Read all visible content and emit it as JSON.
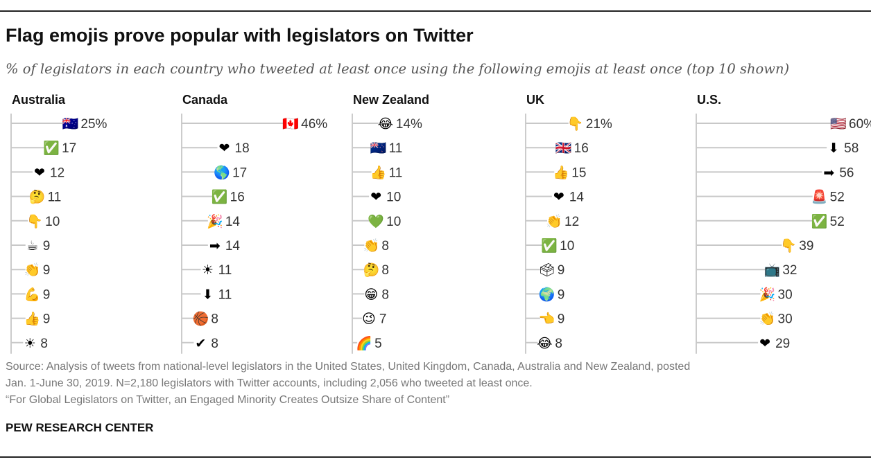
{
  "header": {
    "title": "Flag emojis prove popular with legislators on Twitter",
    "subtitle": "% of legislators in each country who tweeted at least once using the following emojis at least once (top 10 shown)"
  },
  "colors": {
    "line": "#c8c8c8",
    "axis": "#9a9a9a",
    "text": "#333333"
  },
  "chart_data": [
    {
      "type": "bar",
      "title": "Australia",
      "unit": "%",
      "xlim": [
        0,
        60
      ],
      "categories": [
        "australia-flag-emoji",
        "check-mark-button-emoji",
        "red-heart-emoji",
        "thinking-face-emoji",
        "backhand-index-pointing-down-emoji",
        "hot-beverage-emoji",
        "clapping-hands-emoji",
        "flexed-biceps-emoji",
        "thumbs-up-emoji",
        "sun-emoji"
      ],
      "glyphs": [
        "🇦🇺",
        "✅",
        "❤",
        "🤔",
        "👇",
        "☕",
        "👏",
        "💪",
        "👍",
        "☀"
      ],
      "values": [
        25,
        17,
        12,
        11,
        10,
        9,
        9,
        9,
        9,
        8
      ],
      "labels": [
        "25%",
        "17",
        "12",
        "11",
        "10",
        "9",
        "9",
        "9",
        "9",
        "8"
      ]
    },
    {
      "type": "bar",
      "title": "Canada",
      "unit": "%",
      "xlim": [
        0,
        60
      ],
      "categories": [
        "canada-flag-emoji",
        "red-heart-emoji",
        "globe-americas-emoji",
        "check-mark-button-emoji",
        "party-popper-emoji",
        "right-arrow-emoji",
        "sun-emoji",
        "down-arrow-emoji",
        "basketball-emoji",
        "check-mark-emoji"
      ],
      "glyphs": [
        "🇨🇦",
        "❤",
        "🌎",
        "✅",
        "🎉",
        "➡",
        "☀",
        "⬇",
        "🏀",
        "✔"
      ],
      "values": [
        46,
        18,
        17,
        16,
        14,
        14,
        11,
        11,
        8,
        8
      ],
      "labels": [
        "46%",
        "18",
        "17",
        "16",
        "14",
        "14",
        "11",
        "11",
        "8",
        "8"
      ]
    },
    {
      "type": "bar",
      "title": "New Zealand",
      "unit": "%",
      "xlim": [
        0,
        60
      ],
      "categories": [
        "face-with-tears-of-joy-emoji",
        "new-zealand-flag-emoji",
        "thumbs-up-emoji",
        "red-heart-emoji",
        "green-heart-emoji",
        "clapping-hands-emoji",
        "thinking-face-emoji",
        "grinning-face-emoji",
        "winking-face-emoji",
        "rainbow-emoji"
      ],
      "glyphs": [
        "😂",
        "🇳🇿",
        "👍",
        "❤",
        "💚",
        "👏",
        "🤔",
        "😁",
        "😉",
        "🌈"
      ],
      "values": [
        14,
        11,
        11,
        10,
        10,
        8,
        8,
        8,
        7,
        5
      ],
      "labels": [
        "14%",
        "11",
        "11",
        "10",
        "10",
        "8",
        "8",
        "8",
        "7",
        "5"
      ]
    },
    {
      "type": "bar",
      "title": "UK",
      "unit": "%",
      "xlim": [
        0,
        60
      ],
      "categories": [
        "backhand-index-pointing-down-emoji",
        "united-kingdom-flag-emoji",
        "thumbs-up-emoji",
        "red-heart-emoji",
        "clapping-hands-emoji",
        "check-mark-button-emoji",
        "ballot-box-emoji",
        "globe-europe-africa-emoji",
        "backhand-index-pointing-left-emoji",
        "face-with-tears-of-joy-emoji"
      ],
      "glyphs": [
        "👇",
        "🇬🇧",
        "👍",
        "❤",
        "👏",
        "✅",
        "🗳",
        "🌍",
        "👈",
        "😂"
      ],
      "values": [
        21,
        16,
        15,
        14,
        12,
        10,
        9,
        9,
        9,
        8
      ],
      "labels": [
        "21%",
        "16",
        "15",
        "14",
        "12",
        "10",
        "9",
        "9",
        "9",
        "8"
      ]
    },
    {
      "type": "bar",
      "title": "U.S.",
      "unit": "%",
      "xlim": [
        0,
        60
      ],
      "categories": [
        "united-states-flag-emoji",
        "down-arrow-emoji",
        "right-arrow-emoji",
        "police-car-light-emoji",
        "check-mark-button-emoji",
        "backhand-index-pointing-down-emoji",
        "television-emoji",
        "party-popper-emoji",
        "clapping-hands-emoji",
        "red-heart-emoji"
      ],
      "glyphs": [
        "🇺🇸",
        "⬇",
        "➡",
        "🚨",
        "✅",
        "👇",
        "📺",
        "🎉",
        "👏",
        "❤"
      ],
      "values": [
        60,
        58,
        56,
        52,
        52,
        39,
        32,
        30,
        30,
        29
      ],
      "labels": [
        "60%",
        "58",
        "56",
        "52",
        "52",
        "39",
        "32",
        "30",
        "30",
        "29"
      ]
    }
  ],
  "footer": {
    "source_line1": "Source: Analysis of tweets from national-level legislators in the United States, United Kingdom, Canada, Australia and New Zealand, posted",
    "source_line2": "Jan. 1-June 30, 2019. N=2,180 legislators with Twitter accounts, including 2,056 who tweeted at least once.",
    "report": "“For Global Legislators on Twitter, an Engaged Minority Creates Outsize Share of Content”",
    "brand": "PEW RESEARCH CENTER"
  }
}
